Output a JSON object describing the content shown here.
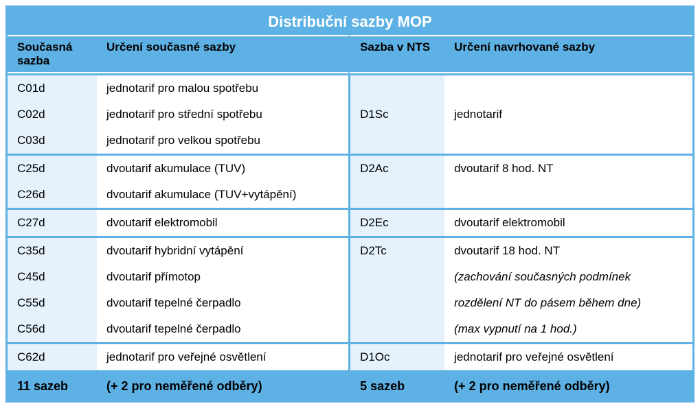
{
  "title": "Distribuční sazby MOP",
  "headers": {
    "col1": "Současná sazba",
    "col2": "Určení současné sazby",
    "col3": "Sazba v NTS",
    "col4": "Určení navrhované sazby"
  },
  "groups": [
    {
      "left": [
        {
          "code": "C01d",
          "desc": "jednotarif pro malou spotřebu"
        },
        {
          "code": "C02d",
          "desc": "jednotarif pro střední spotřebu"
        },
        {
          "code": "C03d",
          "desc": "jednotarif pro velkou spotřebu"
        }
      ],
      "right": [
        {
          "code": "",
          "desc": ""
        },
        {
          "code": "D1Sc",
          "desc": "jednotarif"
        },
        {
          "code": "",
          "desc": ""
        }
      ]
    },
    {
      "left": [
        {
          "code": "C25d",
          "desc": "dvoutarif akumulace (TUV)"
        },
        {
          "code": "C26d",
          "desc": "dvoutarif akumulace (TUV+vytápění)"
        }
      ],
      "right": [
        {
          "code": "D2Ac",
          "desc": "dvoutarif 8 hod. NT"
        },
        {
          "code": "",
          "desc": ""
        }
      ]
    },
    {
      "left": [
        {
          "code": "C27d",
          "desc": "dvoutarif elektromobil"
        }
      ],
      "right": [
        {
          "code": "D2Ec",
          "desc": "dvoutarif elektromobil"
        }
      ]
    },
    {
      "left": [
        {
          "code": "C35d",
          "desc": "dvoutarif hybridní vytápění"
        },
        {
          "code": "C45d",
          "desc": "dvoutarif přímotop"
        },
        {
          "code": "C55d",
          "desc": "dvoutarif tepelné čerpadlo"
        },
        {
          "code": "C56d",
          "desc": "dvoutarif tepelné čerpadlo"
        }
      ],
      "right": [
        {
          "code": "D2Tc",
          "desc": "dvoutarif 18 hod. NT"
        },
        {
          "code": "",
          "desc": "(zachování současných podmínek",
          "italic": true
        },
        {
          "code": "",
          "desc": "rozdělení NT do pásem během dne)",
          "italic": true
        },
        {
          "code": "",
          "desc": "(max vypnutí na 1 hod.)",
          "italic": true
        }
      ]
    },
    {
      "left": [
        {
          "code": "C62d",
          "desc": "jednotarif pro veřejné osvětlení"
        }
      ],
      "right": [
        {
          "code": "D1Oc",
          "desc": "jednotarif pro veřejné osvětlení"
        }
      ]
    }
  ],
  "summary": {
    "left_count": "11 sazeb",
    "left_note": "(+ 2 pro neměřené odběry)",
    "right_count": "5 sazeb",
    "right_note": "(+ 2 pro neměřené odběry)"
  },
  "colors": {
    "blue": "#5eb1e4",
    "light_blue": "#e6f2fb",
    "white": "#ffffff",
    "text": "#000000"
  }
}
